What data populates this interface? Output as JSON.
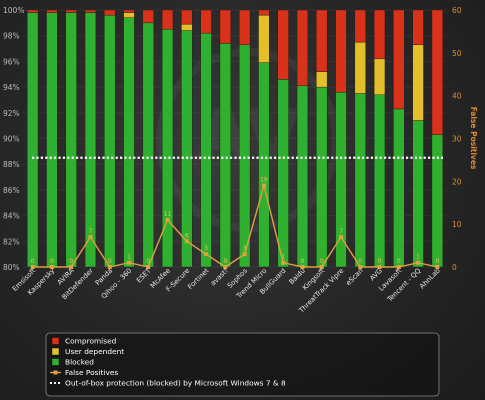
{
  "chart_data": {
    "type": "bar",
    "stacked": true,
    "categories": [
      "Emsisoft",
      "Kaspersky",
      "AVIRA",
      "BitDefender",
      "Panda",
      "Qihoo - 360",
      "ESET",
      "McAfee",
      "F-Secure",
      "Fortinet",
      "avast!",
      "Sophos",
      "Trend Micro",
      "BullGuard",
      "Baidu",
      "Kingsoft",
      "ThreatTrack Vipre",
      "eScan",
      "AVG",
      "Lavasoft",
      "Tencent - QQ",
      "AhnLab"
    ],
    "series": [
      {
        "name": "Blocked",
        "color": "#2fb12f",
        "values": [
          99.8,
          99.8,
          99.8,
          99.8,
          99.6,
          99.4,
          99.0,
          98.5,
          98.4,
          98.2,
          97.4,
          97.3,
          95.9,
          94.6,
          94.1,
          94.0,
          93.6,
          93.5,
          93.4,
          92.3,
          91.4,
          90.3
        ]
      },
      {
        "name": "User dependent",
        "color": "#e3c02a",
        "values": [
          0.0,
          0.0,
          0.0,
          0.0,
          0.0,
          0.4,
          0.0,
          0.0,
          0.5,
          0.0,
          0.0,
          0.0,
          3.7,
          0.0,
          0.0,
          1.2,
          0.0,
          4.0,
          2.8,
          0.0,
          5.9,
          0.0
        ]
      },
      {
        "name": "Compromised",
        "color": "#d8321a",
        "values": [
          0.2,
          0.2,
          0.2,
          0.2,
          0.4,
          0.2,
          1.0,
          1.5,
          1.1,
          1.8,
          2.6,
          2.7,
          0.4,
          5.4,
          5.9,
          4.8,
          6.4,
          2.5,
          3.8,
          7.7,
          2.7,
          9.7
        ]
      }
    ],
    "false_positives": {
      "name": "False Positives",
      "color": "#e0a040",
      "values": [
        0,
        0,
        0,
        7,
        0,
        1,
        0,
        11,
        6,
        3,
        0,
        3,
        19,
        1,
        0,
        0,
        7,
        0,
        0,
        0,
        1,
        0
      ]
    },
    "baseline": {
      "name": "Out-of-box protection (blocked) by Microsoft Windows 7 & 8",
      "value": 88.5,
      "color": "#ffffff"
    },
    "ylim": [
      80,
      100
    ],
    "yticks": [
      "80%",
      "82%",
      "84%",
      "86%",
      "88%",
      "90%",
      "92%",
      "94%",
      "96%",
      "98%",
      "100%"
    ],
    "y2lim": [
      0,
      60
    ],
    "y2ticks": [
      "0",
      "10",
      "20",
      "30",
      "40",
      "50",
      "60"
    ],
    "y2label": "False Positives",
    "legend_position": "bottom",
    "legend": [
      "Compromised",
      "User dependent",
      "Blocked",
      "False Positives",
      "Out-of-box protection (blocked) by Microsoft Windows 7 & 8"
    ]
  }
}
